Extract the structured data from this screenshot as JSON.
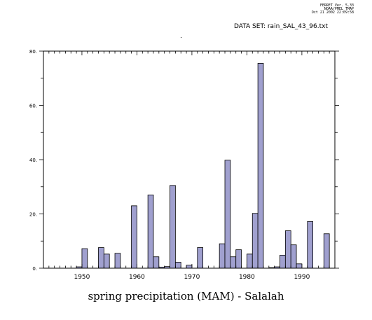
{
  "header": {
    "line1": "FERRET Ver. 5.33",
    "line2": "NOAA/PMEL TMAP",
    "line3": "Oct 21 2002 22:09:58"
  },
  "dataset_label": "DATA SET: rain_SAL_43_96.txt",
  "caption": "spring precipitation (MAM) - Salalah",
  "chart_data": {
    "type": "bar",
    "title": "",
    "xlabel": "spring precipitation (MAM) - Salalah",
    "ylabel": "",
    "xlim": [
      1943,
      1996
    ],
    "ylim": [
      0,
      80
    ],
    "x_ticks": [
      "1950",
      "1960",
      "1970",
      "1980",
      "1990"
    ],
    "y_ticks": [
      "0.",
      "20.",
      "40.",
      "60.",
      "80."
    ],
    "bar_color": "#a0a0cf",
    "years": [
      1949,
      1950,
      1953,
      1954,
      1956,
      1959,
      1962,
      1963,
      1964,
      1965,
      1966,
      1967,
      1969,
      1971,
      1975,
      1976,
      1977,
      1978,
      1980,
      1981,
      1982,
      1984,
      1985,
      1986,
      1987,
      1988,
      1989,
      1991,
      1994
    ],
    "values": [
      0.5,
      7.2,
      7.6,
      5.2,
      5.5,
      23.0,
      27.0,
      4.2,
      0.4,
      0.6,
      30.5,
      2.2,
      1.1,
      7.6,
      9.0,
      39.8,
      4.2,
      6.8,
      5.2,
      20.2,
      75.5,
      0.2,
      0.5,
      4.8,
      13.8,
      8.6,
      1.6,
      17.2,
      12.7
    ]
  }
}
